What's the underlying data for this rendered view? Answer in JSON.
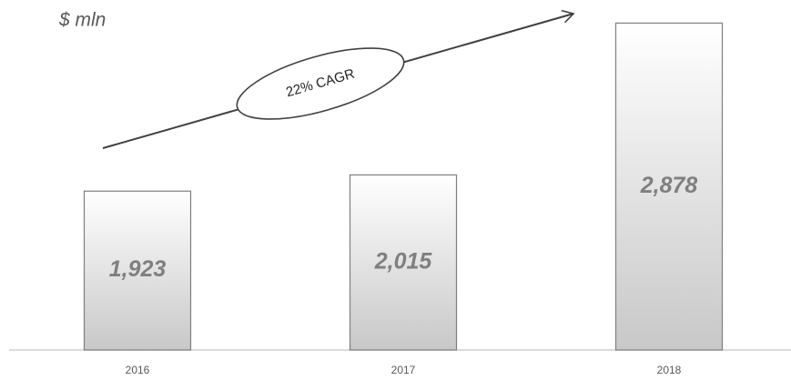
{
  "chart_data": {
    "type": "bar",
    "subtitle": "$ mln",
    "annotation": "22% CAGR",
    "categories": [
      "2016",
      "2017",
      "2018"
    ],
    "values": [
      1923,
      2015,
      2878
    ],
    "value_labels": [
      "1,923",
      "2,015",
      "2,878"
    ],
    "color": "#d9d9d9",
    "ylim": [
      1020,
      2880
    ]
  }
}
